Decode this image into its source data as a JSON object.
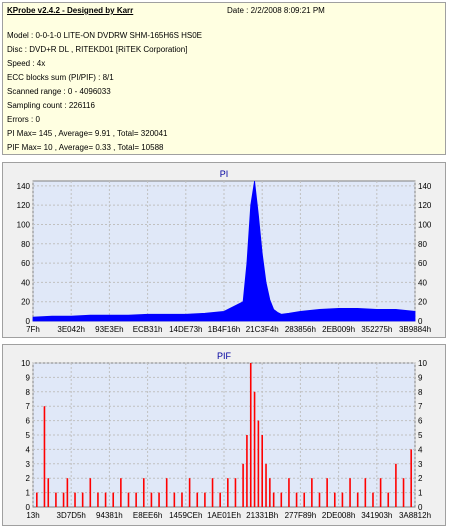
{
  "header": {
    "title": "KProbe v2.4.2 - Designed by Karr",
    "date": "Date : 2/2/2008 8:09:21 PM"
  },
  "info_lines": [
    "Model : 0-0-1-0 LITE-ON DVDRW SHM-165H6S HS0E",
    "Disc : DVD+R DL , RITEKD01 [RiTEK Corporation]",
    "Speed : 4x",
    "ECC blocks sum (PI/PIF) : 8/1",
    "Scanned range : 0 - 4096033",
    "Sampling count : 226116",
    "Errors : 0",
    "PI Max= 145 , Average= 9.91 , Total= 320041",
    "PIF Max= 10 , Average= 0.33 , Total= 10588"
  ],
  "colors": {
    "plot_bg": "#e0e8f8",
    "pi": "#0000ff",
    "pif": "#ff0000",
    "panel": "#f0f0f0"
  },
  "chart_data": [
    {
      "type": "area",
      "title": "PI",
      "ylim": [
        0,
        145
      ],
      "yticks": [
        0,
        20,
        40,
        60,
        80,
        100,
        120,
        140
      ],
      "xticks": [
        "7Fh",
        "3E042h",
        "93E3Eh",
        "ECB31h",
        "14DE73h",
        "1B4F16h",
        "21C3F4h",
        "283856h",
        "2EB009h",
        "352275h",
        "3B9884h"
      ],
      "x": [
        0,
        5,
        10,
        15,
        20,
        25,
        30,
        35,
        40,
        45,
        50,
        55,
        56,
        57,
        58,
        59,
        60,
        61,
        62,
        63,
        64,
        65,
        67,
        70,
        75,
        80,
        85,
        90,
        95,
        100
      ],
      "values": [
        4,
        5,
        5,
        6,
        6,
        6,
        7,
        7,
        7,
        8,
        10,
        20,
        60,
        120,
        145,
        110,
        70,
        40,
        22,
        12,
        9,
        7,
        8,
        10,
        12,
        13,
        13,
        12,
        12,
        10
      ],
      "grid": true
    },
    {
      "type": "bar",
      "title": "PIF",
      "ylim": [
        0,
        10
      ],
      "yticks": [
        0,
        1,
        2,
        3,
        4,
        5,
        6,
        7,
        8,
        9,
        10
      ],
      "xticks": [
        "13h",
        "3D7D5h",
        "94381h",
        "E8EE6h",
        "1459CEh",
        "1AE01Eh",
        "21331Bh",
        "277F89h",
        "2DE008h",
        "341903h",
        "3A8812h"
      ],
      "x": [
        1,
        3,
        4,
        6,
        8,
        9,
        11,
        13,
        15,
        17,
        19,
        21,
        23,
        25,
        27,
        29,
        31,
        33,
        35,
        37,
        39,
        41,
        43,
        45,
        47,
        49,
        51,
        53,
        55,
        56,
        57,
        58,
        59,
        60,
        61,
        62,
        63,
        65,
        67,
        69,
        71,
        73,
        75,
        77,
        79,
        81,
        83,
        85,
        87,
        89,
        91,
        93,
        95,
        97,
        99
      ],
      "values": [
        1,
        7,
        2,
        1,
        1,
        2,
        1,
        1,
        2,
        1,
        1,
        1,
        2,
        1,
        1,
        2,
        1,
        1,
        2,
        1,
        1,
        2,
        1,
        1,
        2,
        1,
        2,
        2,
        3,
        5,
        10,
        8,
        6,
        5,
        3,
        2,
        1,
        1,
        2,
        1,
        1,
        2,
        1,
        2,
        1,
        1,
        2,
        1,
        2,
        1,
        2,
        1,
        3,
        2,
        4
      ],
      "grid": true
    }
  ]
}
